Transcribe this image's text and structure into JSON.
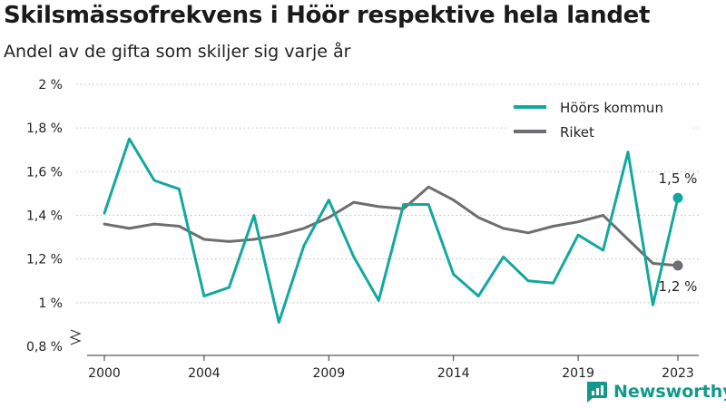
{
  "title": "Skilsmässofrekvens i Höör respektive hela landet",
  "subtitle": "Andel av de gifta som skiljer sig varje år",
  "brand": {
    "name": "Newsworthy",
    "icon": "newsworthy-logo-icon",
    "color": "#129989"
  },
  "chart_data": {
    "type": "line",
    "title": "Skilsmässofrekvens i Höör respektive hela landet",
    "subtitle": "Andel av de gifta som skiljer sig varje år",
    "x": [
      2000,
      2001,
      2002,
      2003,
      2004,
      2005,
      2006,
      2007,
      2008,
      2009,
      2010,
      2011,
      2012,
      2013,
      2014,
      2015,
      2016,
      2017,
      2018,
      2019,
      2020,
      2021,
      2022,
      2023
    ],
    "x_ticks": [
      "2000",
      "2004",
      "2009",
      "2014",
      "2019",
      "2023"
    ],
    "x_tick_values": [
      2000,
      2004,
      2009,
      2014,
      2019,
      2023
    ],
    "y_ticks": [
      "0,8 %",
      "1 %",
      "1,2 %",
      "1,4 %",
      "1,6 %",
      "1,8 %",
      "2 %"
    ],
    "y_tick_values": [
      0.8,
      1.0,
      1.2,
      1.4,
      1.6,
      1.8,
      2.0
    ],
    "ylim": [
      0.8,
      2.0
    ],
    "y_axis_break": true,
    "grid": "horizontal dotted",
    "legend_position": "top-right",
    "series": [
      {
        "name": "Höörs kommun",
        "color": "#13a89e",
        "values": [
          1.41,
          1.75,
          1.56,
          1.52,
          1.03,
          1.07,
          1.4,
          0.91,
          1.26,
          1.47,
          1.21,
          1.01,
          1.45,
          1.45,
          1.13,
          1.03,
          1.21,
          1.1,
          1.09,
          1.31,
          1.24,
          1.69,
          0.99,
          1.48
        ],
        "end_label": "1,5 %"
      },
      {
        "name": "Riket",
        "color": "#6d6e71",
        "values": [
          1.36,
          1.34,
          1.36,
          1.35,
          1.29,
          1.28,
          1.29,
          1.31,
          1.34,
          1.39,
          1.46,
          1.44,
          1.43,
          1.53,
          1.47,
          1.39,
          1.34,
          1.32,
          1.35,
          1.37,
          1.4,
          1.29,
          1.18,
          1.17
        ],
        "end_label": "1,2 %"
      }
    ]
  }
}
